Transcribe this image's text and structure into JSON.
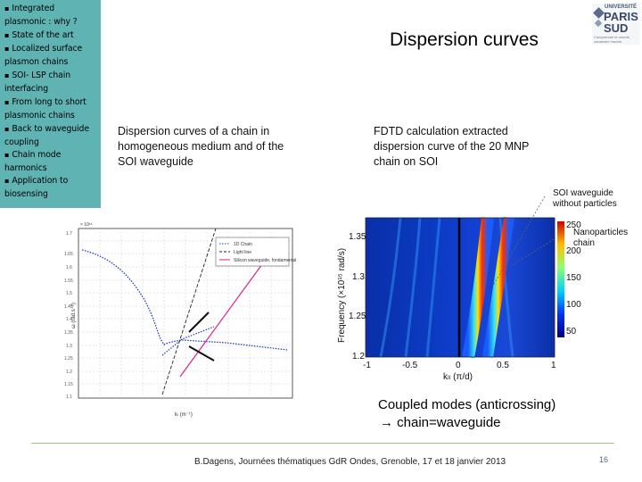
{
  "sidebar": {
    "items": [
      {
        "label": "Integrated plasmonic : why ?"
      },
      {
        "label": "State of the art"
      },
      {
        "label": "Localized surface plasmon chains"
      },
      {
        "label": "SOI- LSP chain interfacing"
      },
      {
        "label": "From long to short plasmonic chains"
      },
      {
        "label": "Back to waveguide coupling"
      },
      {
        "label": "Chain mode harmonics"
      },
      {
        "label": "Application to biosensing"
      }
    ]
  },
  "header": {
    "title": "Dispersion curves",
    "logo": {
      "tag": "UNIVERSITÉ",
      "name_line1": "PARIS",
      "name_line2": "SUD",
      "sub": "Comprendre le monde, construire l'avenir"
    }
  },
  "captions": {
    "left": "Dispersion curves of a chain in homogeneous medium and of the SOI waveguide",
    "right": "FDTD calculation extracted dispersion curve of the 20 MNP chain on SOI"
  },
  "left_plot": {
    "ylabel": "ω (rad.s⁻¹)",
    "xlabel": "kₗ (m⁻¹)",
    "scale_label": "× 10¹⁵",
    "legend": [
      "1D Chain",
      "Light line",
      "Silicon waveguide, fondamental"
    ],
    "yticks": [
      "1.7",
      "1.65",
      "1.6",
      "1.55",
      "1.5",
      "1.45",
      "1.4",
      "1.35",
      "1.3",
      "1.25",
      "1.2",
      "1.15",
      "1.1"
    ],
    "colors": {
      "chain": "#1f3fbf",
      "light": "#222222",
      "waveguide": "#e0208f"
    }
  },
  "right_plot": {
    "annotations": {
      "soi": "SOI waveguide without particles",
      "nano": "Nanoparticles chain"
    },
    "ylabel": "Frequency (×10¹⁵ rad/s)",
    "xlabel": "kₗₗ (π/d)",
    "yticks": [
      "1.35",
      "1.3",
      "1.25",
      "1.2"
    ],
    "xticks": [
      "-1",
      "-0.5",
      "0",
      "0.5",
      "1"
    ],
    "colorbar": [
      "250",
      "200",
      "150",
      "100",
      "50"
    ]
  },
  "coupled": {
    "line1": "Coupled modes (anticrossing)",
    "line2": "→ chain=waveguide"
  },
  "footer": {
    "text": "B.Dagens, Journées thématiques GdR Ondes, Grenoble, 17 et 18 janvier 2013",
    "page": "16"
  }
}
